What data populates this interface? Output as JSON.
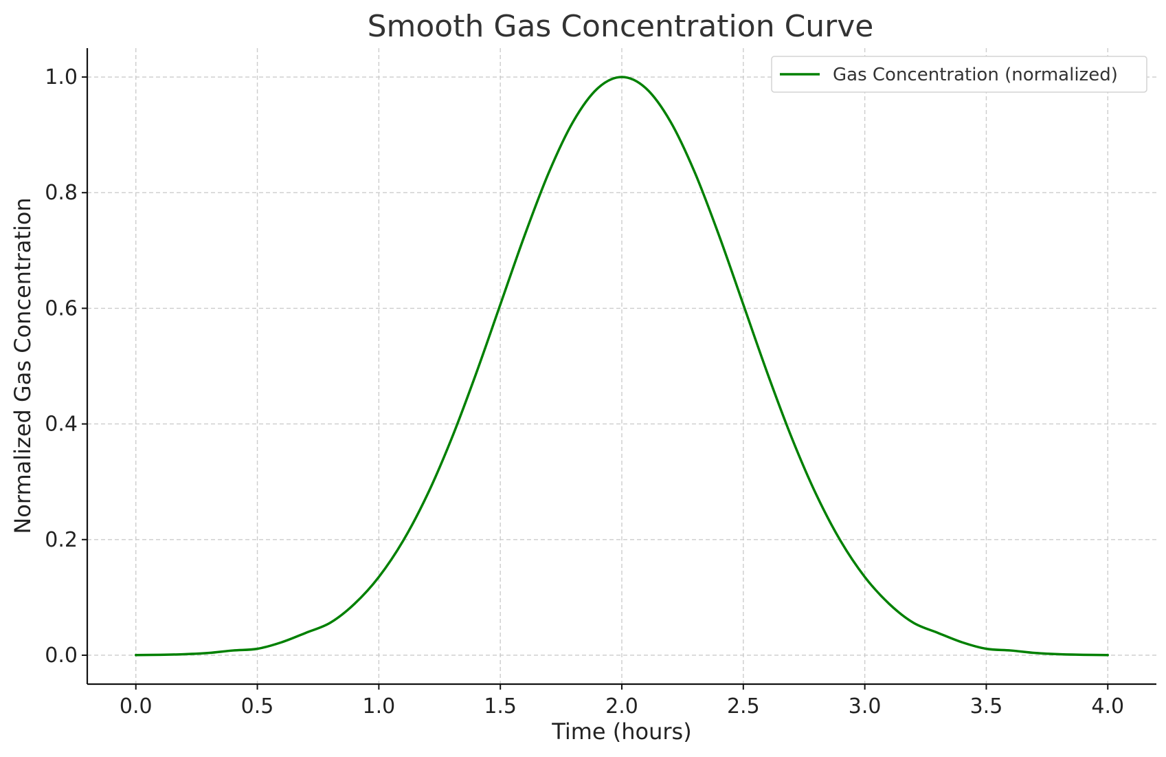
{
  "chart_data": {
    "type": "line",
    "title": "Smooth Gas Concentration Curve",
    "xlabel": "Time (hours)",
    "ylabel": "Normalized Gas Concentration",
    "xlim": [
      -0.2,
      4.2
    ],
    "ylim": [
      -0.05,
      1.05
    ],
    "x_ticks": [
      0.0,
      0.5,
      1.0,
      1.5,
      2.0,
      2.5,
      3.0,
      3.5,
      4.0
    ],
    "x_tick_labels": [
      "0.0",
      "0.5",
      "1.0",
      "1.5",
      "2.0",
      "2.5",
      "3.0",
      "3.5",
      "4.0"
    ],
    "y_ticks": [
      0.0,
      0.2,
      0.4,
      0.6,
      0.8,
      1.0
    ],
    "y_tick_labels": [
      "0.0",
      "0.2",
      "0.4",
      "0.6",
      "0.8",
      "1.0"
    ],
    "grid": true,
    "legend_position": "top-right",
    "series": [
      {
        "name": "Gas Concentration (normalized)",
        "color": "#008000",
        "x": [
          0.0,
          0.1,
          0.2,
          0.3,
          0.4,
          0.5,
          0.6,
          0.7,
          0.8,
          0.9,
          1.0,
          1.1,
          1.2,
          1.3,
          1.4,
          1.5,
          1.6,
          1.7,
          1.8,
          1.9,
          2.0,
          2.1,
          2.2,
          2.3,
          2.4,
          2.5,
          2.6,
          2.7,
          2.8,
          2.9,
          3.0,
          3.1,
          3.2,
          3.3,
          3.4,
          3.5,
          3.6,
          3.7,
          3.8,
          3.9,
          4.0
        ],
        "y": [
          0.0003,
          0.0007,
          0.0017,
          0.0039,
          0.0082,
          0.0111,
          0.0224,
          0.0388,
          0.0561,
          0.0889,
          0.1353,
          0.1979,
          0.278,
          0.3753,
          0.4868,
          0.6065,
          0.7261,
          0.8353,
          0.9231,
          0.9802,
          1.0,
          0.9802,
          0.9231,
          0.8353,
          0.7261,
          0.6065,
          0.4868,
          0.3753,
          0.278,
          0.1979,
          0.1353,
          0.0889,
          0.0561,
          0.0388,
          0.0224,
          0.0111,
          0.0082,
          0.0039,
          0.0017,
          0.0007,
          0.0003
        ]
      }
    ]
  }
}
